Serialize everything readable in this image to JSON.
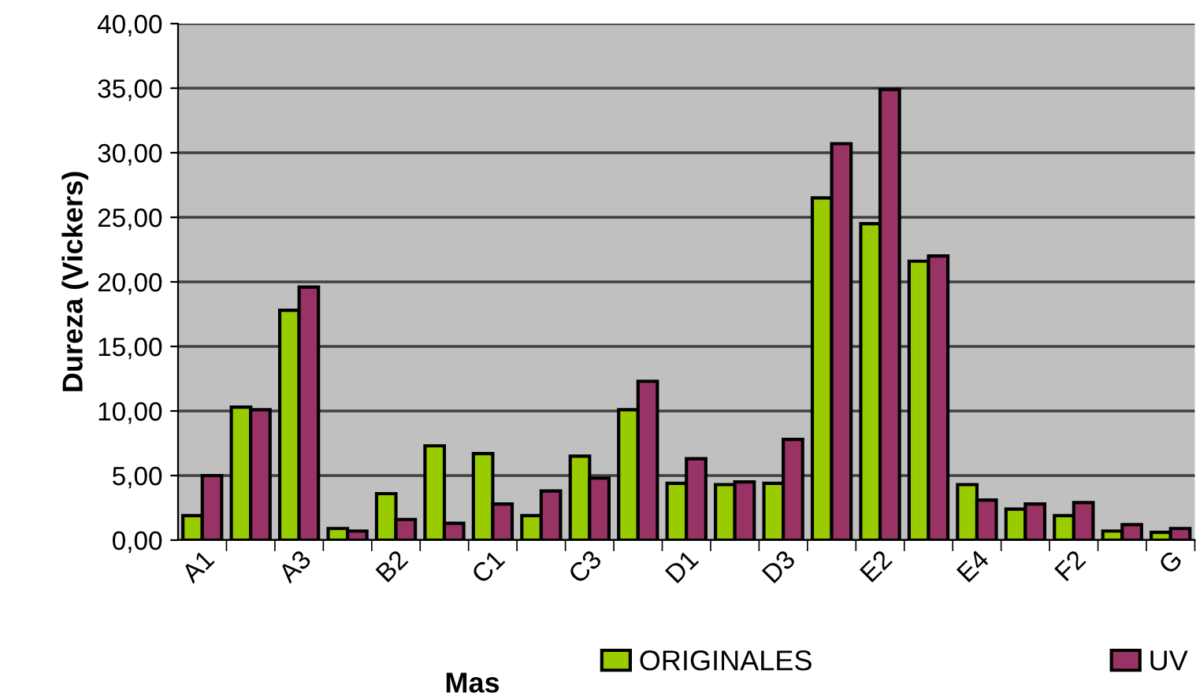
{
  "chart_data": {
    "type": "bar",
    "xlabel": "Mas",
    "ylabel": "Dureza (Vickers)",
    "categories": [
      "A1",
      null,
      "A3",
      null,
      "B2",
      null,
      "C1",
      null,
      "C3",
      null,
      "D1",
      null,
      "D3",
      null,
      "E2",
      null,
      "E4",
      null,
      "F2",
      null,
      "G"
    ],
    "series": [
      {
        "name": "ORIGINALES",
        "color": "#99cc00",
        "values": [
          1.9,
          10.3,
          17.8,
          0.9,
          3.6,
          7.3,
          6.7,
          1.9,
          6.5,
          10.1,
          4.4,
          4.3,
          4.4,
          26.5,
          24.5,
          21.6,
          4.3,
          2.4,
          1.9,
          0.7,
          0.6
        ]
      },
      {
        "name": "UV",
        "color": "#993366",
        "values": [
          5.0,
          10.1,
          19.6,
          0.7,
          1.6,
          1.3,
          2.8,
          3.8,
          4.8,
          12.3,
          6.3,
          4.5,
          7.8,
          30.7,
          34.9,
          22.0,
          3.1,
          2.8,
          2.9,
          1.2,
          0.9
        ]
      }
    ],
    "ylim": [
      0,
      40
    ],
    "yticks": [
      {
        "value": 0,
        "label": "0,00"
      },
      {
        "value": 5,
        "label": "5,00"
      },
      {
        "value": 10,
        "label": "10,00"
      },
      {
        "value": 15,
        "label": "15,00"
      },
      {
        "value": 20,
        "label": "20,00"
      },
      {
        "value": 25,
        "label": "25,00"
      },
      {
        "value": 30,
        "label": "30,00"
      },
      {
        "value": 35,
        "label": "35,00"
      },
      {
        "value": 40,
        "label": "40,00"
      }
    ],
    "grid": "y",
    "legend": "bottom"
  }
}
